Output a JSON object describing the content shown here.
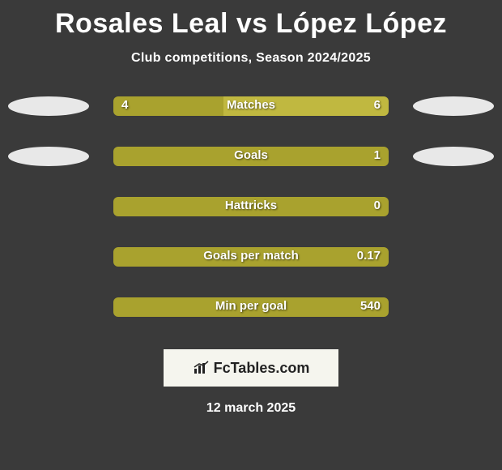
{
  "title": "Rosales Leal vs López López",
  "subtitle": "Club competitions, Season 2024/2025",
  "date": "12 march 2025",
  "colors": {
    "background": "#3a3a3a",
    "ellipse": "#e8e8e8",
    "bar_left": "#a9a22e",
    "bar_right": "#c0b840",
    "title": "#ffffff",
    "subtitle": "#ffffff",
    "bar_label": "#ffffff",
    "logo_bg": "#f5f5ee",
    "logo_text": "#222222"
  },
  "logo": {
    "text": "FcTables.com"
  },
  "rows": [
    {
      "label": "Matches",
      "left_val": "4",
      "right_val": "6",
      "left_pct": 40,
      "show_ellipse": true
    },
    {
      "label": "Goals",
      "left_val": "",
      "right_val": "1",
      "left_pct": 100,
      "show_ellipse": true
    },
    {
      "label": "Hattricks",
      "left_val": "",
      "right_val": "0",
      "left_pct": 100,
      "show_ellipse": false
    },
    {
      "label": "Goals per match",
      "left_val": "",
      "right_val": "0.17",
      "left_pct": 100,
      "show_ellipse": false
    },
    {
      "label": "Min per goal",
      "left_val": "",
      "right_val": "540",
      "left_pct": 100,
      "show_ellipse": false
    }
  ]
}
